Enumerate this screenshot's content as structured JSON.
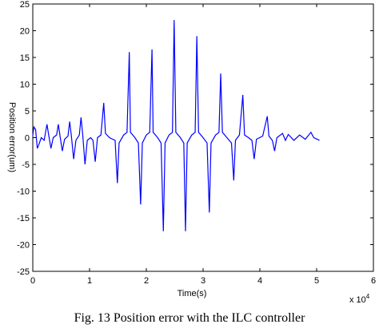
{
  "chart_data": {
    "type": "line",
    "caption": "Fig. 13 Position error with the ILC controller",
    "x_label": "Time(s)",
    "y_label": "Position error(um)",
    "x_multiplier": {
      "base": "x 10",
      "exponent": "4"
    },
    "xlim": [
      0,
      6
    ],
    "xticks": [
      0,
      1,
      2,
      3,
      4,
      5,
      6
    ],
    "ylim": [
      -25,
      25
    ],
    "yticks": [
      25,
      20,
      15,
      10,
      5,
      0,
      -5,
      -10,
      -15,
      -20,
      -25
    ],
    "grid": false,
    "series": [
      {
        "color": "#0000ff",
        "x": [
          0,
          0.02,
          0.05,
          0.08,
          0.1,
          0.15,
          0.2,
          0.25,
          0.28,
          0.32,
          0.36,
          0.42,
          0.45,
          0.48,
          0.52,
          0.56,
          0.62,
          0.65,
          0.68,
          0.72,
          0.76,
          0.82,
          0.85,
          0.88,
          0.92,
          0.96,
          1.02,
          1.06,
          1.1,
          1.14,
          1.2,
          1.25,
          1.28,
          1.35,
          1.45,
          1.49,
          1.52,
          1.6,
          1.66,
          1.7,
          1.72,
          1.8,
          1.86,
          1.9,
          1.93,
          2.0,
          2.06,
          2.1,
          2.12,
          2.2,
          2.26,
          2.3,
          2.33,
          2.4,
          2.46,
          2.49,
          2.52,
          2.6,
          2.66,
          2.69,
          2.72,
          2.8,
          2.86,
          2.89,
          2.92,
          3.0,
          3.07,
          3.11,
          3.14,
          3.22,
          3.28,
          3.31,
          3.34,
          3.42,
          3.5,
          3.54,
          3.57,
          3.64,
          3.7,
          3.73,
          3.8,
          3.86,
          3.9,
          3.94,
          4.05,
          4.13,
          4.16,
          4.22,
          4.26,
          4.3,
          4.4,
          4.45,
          4.5,
          4.6,
          4.7,
          4.8,
          4.9,
          4.95,
          5.05
        ],
        "values": [
          0.5,
          2,
          1.5,
          -2,
          -1.5,
          0,
          -0.5,
          2.5,
          0.5,
          -2,
          0,
          0.5,
          2.5,
          0.3,
          -2.5,
          -0.3,
          0.3,
          3,
          0.3,
          -4,
          -0.5,
          0.5,
          3.8,
          0.5,
          -5,
          -0.5,
          0,
          -0.5,
          -4.5,
          0,
          0.5,
          6.5,
          0.8,
          0,
          -0.5,
          -8.5,
          -1,
          0.5,
          1,
          16,
          1,
          0,
          -1,
          -12.5,
          -1,
          0.5,
          1,
          16.5,
          1,
          0,
          -1,
          -17.5,
          -1,
          0.5,
          1,
          22,
          1,
          0,
          -1,
          -17.5,
          -1,
          0.5,
          1,
          19,
          1,
          0,
          -1,
          -14,
          -1,
          0.5,
          1,
          12,
          1,
          0,
          -1,
          -8,
          -0.5,
          0.5,
          8,
          0.5,
          0,
          -0.5,
          -4,
          -0.3,
          0.3,
          4,
          0.3,
          -0.5,
          -2.5,
          0,
          0.8,
          -0.5,
          0.6,
          -0.5,
          0.5,
          -0.3,
          1,
          0,
          -0.5
        ]
      }
    ]
  }
}
